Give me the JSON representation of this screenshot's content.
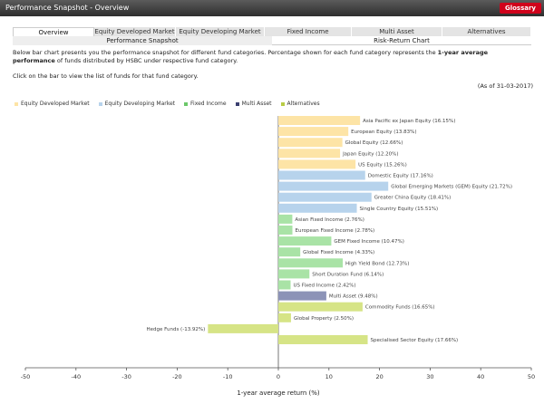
{
  "header": {
    "title": "Performance Snapshot - Overview",
    "glossary_label": "Glossary"
  },
  "tabs": [
    {
      "label": "Overview",
      "active": true
    },
    {
      "label": "Equity Developed Market",
      "active": false
    },
    {
      "label": "Equity Developing Market",
      "active": false
    },
    {
      "label": "Fixed Income",
      "active": false
    },
    {
      "label": "Multi Asset",
      "active": false
    },
    {
      "label": "Alternatives",
      "active": false
    }
  ],
  "subtabs": [
    {
      "label": "Performance Snapshot",
      "active": true
    },
    {
      "label": "Risk-Return Chart",
      "active": false
    }
  ],
  "description": {
    "line1_prefix": "Below bar chart presents you the performance snapshot for different fund categories. Percentage shown for each fund category represents the ",
    "line1_bold": "1-year average performance",
    "line1_suffix": " of funds distributed by HSBC under respective fund category.",
    "line2": "Click on the bar to view the list of funds for that fund category.",
    "as_of": "(As of 31-03-2017)"
  },
  "colors": {
    "Equity Developed Market": "#fde4a6",
    "Equity Developing Market": "#b7d3ec",
    "Fixed Income": "#a9e3a6",
    "Multi Asset": "#8c93b7",
    "Alternatives": "#d6e486",
    "titlebar": "#3a3a3a",
    "glossary": "#d0021b"
  },
  "chart_data": {
    "type": "bar",
    "orientation": "horizontal",
    "xlabel": "1-year average return (%)",
    "xlim": [
      -50,
      50
    ],
    "xticks": [
      -50,
      -40,
      -30,
      -20,
      -10,
      0,
      10,
      20,
      30,
      40,
      50
    ],
    "legend": [
      "Equity Developed Market",
      "Equity Developing Market",
      "Fixed Income",
      "Multi Asset",
      "Alternatives"
    ],
    "legend_position": "top-left",
    "bars": [
      {
        "label": "Asia Pacific ex Japan Equity (16.15%)",
        "value": 16.15,
        "group": "Equity Developed Market"
      },
      {
        "label": "European Equity (13.83%)",
        "value": 13.83,
        "group": "Equity Developed Market"
      },
      {
        "label": "Global Equity (12.66%)",
        "value": 12.66,
        "group": "Equity Developed Market"
      },
      {
        "label": "Japan Equity (12.20%)",
        "value": 12.2,
        "group": "Equity Developed Market"
      },
      {
        "label": "US Equity (15.26%)",
        "value": 15.26,
        "group": "Equity Developed Market"
      },
      {
        "label": "Domestic Equity (17.16%)",
        "value": 17.16,
        "group": "Equity Developing Market"
      },
      {
        "label": "Global Emerging Markets (GEM) Equity (21.72%)",
        "value": 21.72,
        "group": "Equity Developing Market"
      },
      {
        "label": "Greater China Equity (18.41%)",
        "value": 18.41,
        "group": "Equity Developing Market"
      },
      {
        "label": "Single Country Equity (15.51%)",
        "value": 15.51,
        "group": "Equity Developing Market"
      },
      {
        "label": "Asian Fixed Income (2.76%)",
        "value": 2.76,
        "group": "Fixed Income"
      },
      {
        "label": "European Fixed Income (2.78%)",
        "value": 2.78,
        "group": "Fixed Income"
      },
      {
        "label": "GEM Fixed Income (10.47%)",
        "value": 10.47,
        "group": "Fixed Income"
      },
      {
        "label": "Global Fixed Income (4.33%)",
        "value": 4.33,
        "group": "Fixed Income"
      },
      {
        "label": "High Yield Bond (12.73%)",
        "value": 12.73,
        "group": "Fixed Income"
      },
      {
        "label": "Short Duration Fund (6.14%)",
        "value": 6.14,
        "group": "Fixed Income"
      },
      {
        "label": "US Fixed Income (2.42%)",
        "value": 2.42,
        "group": "Fixed Income"
      },
      {
        "label": "Multi Asset (9.48%)",
        "value": 9.48,
        "group": "Multi Asset"
      },
      {
        "label": "Commodity Funds (16.65%)",
        "value": 16.65,
        "group": "Alternatives"
      },
      {
        "label": "Global Property (2.50%)",
        "value": 2.5,
        "group": "Alternatives"
      },
      {
        "label": "Hedge Funds (-13.92%)",
        "value": -13.92,
        "group": "Alternatives"
      },
      {
        "label": "Specialised Sector Equity (17.66%)",
        "value": 17.66,
        "group": "Alternatives"
      }
    ]
  }
}
